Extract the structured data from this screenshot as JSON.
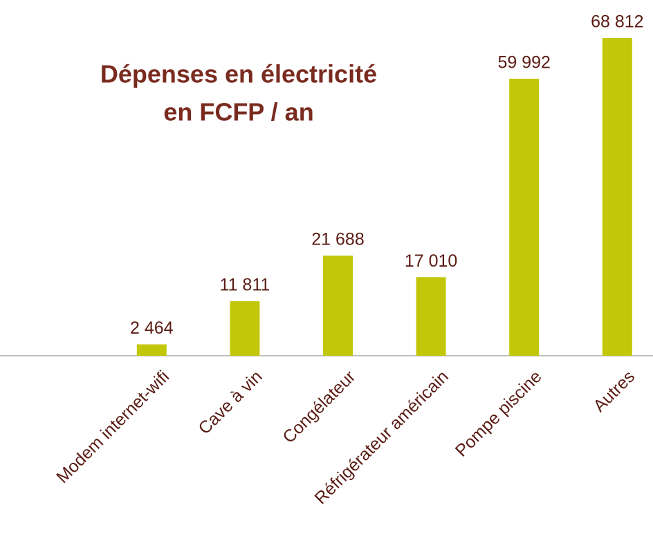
{
  "chart_data": {
    "type": "bar",
    "title": [
      "Dépenses en électricité",
      "en FCFP / an"
    ],
    "categories": [
      "Modem internet-wifi",
      "Cave à vin",
      "Congélateur",
      "Réfrigérateur américain",
      "Pompe piscine",
      "Autres"
    ],
    "values": [
      2464,
      11811,
      21688,
      17010,
      59992,
      68812
    ],
    "value_labels": [
      "2 464",
      "11 811",
      "21 688",
      "17 010",
      "59 992",
      "68 812"
    ],
    "color": "#c3c70a"
  }
}
